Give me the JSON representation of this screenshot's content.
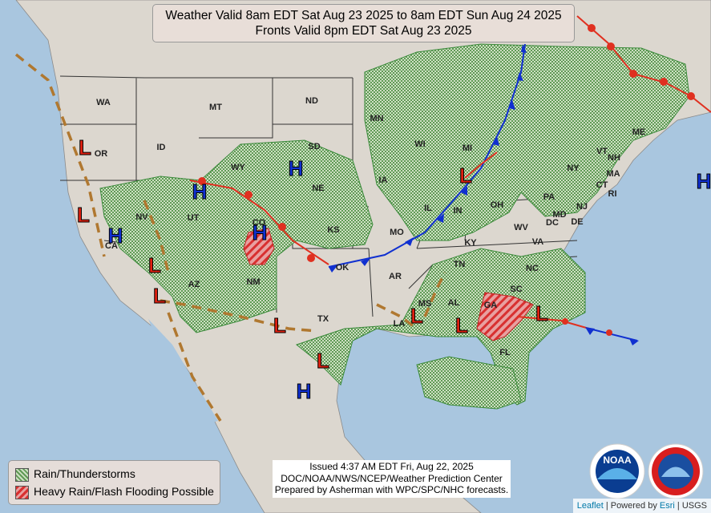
{
  "title": {
    "line1": "Weather Valid 8am EDT Sat Aug 23 2025 to 8am EDT Sun Aug 24 2025",
    "line2": "Fronts Valid 8pm EDT Sat Aug 23 2025"
  },
  "states": [
    "WA",
    "OR",
    "MT",
    "ID",
    "WY",
    "ND",
    "SD",
    "NE",
    "MN",
    "WI",
    "MI",
    "IA",
    "IL",
    "IN",
    "OH",
    "KS",
    "MO",
    "KY",
    "TN",
    "AR",
    "OK",
    "TX",
    "LA",
    "MS",
    "AL",
    "GA",
    "FL",
    "SC",
    "NC",
    "VA",
    "WV",
    "PA",
    "NY",
    "VT",
    "NH",
    "ME",
    "MA",
    "CT",
    "RI",
    "NJ",
    "DE",
    "MD",
    "DC",
    "CO",
    "UT",
    "NV",
    "CA",
    "AZ",
    "NM"
  ],
  "highs": [
    "H",
    "H",
    "H",
    "H",
    "H",
    "H"
  ],
  "lows": [
    "L",
    "L",
    "L",
    "L",
    "L",
    "L",
    "L",
    "L",
    "L",
    "L"
  ],
  "legend": {
    "items": [
      "Rain/Thunderstorms",
      "Heavy Rain/Flash Flooding Possible"
    ]
  },
  "issued": {
    "line1": "Issued  4:37 AM EDT Fri, Aug 22, 2025",
    "line2": "DOC/NOAA/NWS/NCEP/Weather Prediction Center",
    "line3": "Prepared by Asherman with WPC/SPC/NHC forecasts."
  },
  "logo": {
    "noaa": "NOAA"
  },
  "attribution": {
    "leaflet": "Leaflet",
    "powered": "| Powered by",
    "esri": "Esri",
    "usgs": "| USGS"
  }
}
